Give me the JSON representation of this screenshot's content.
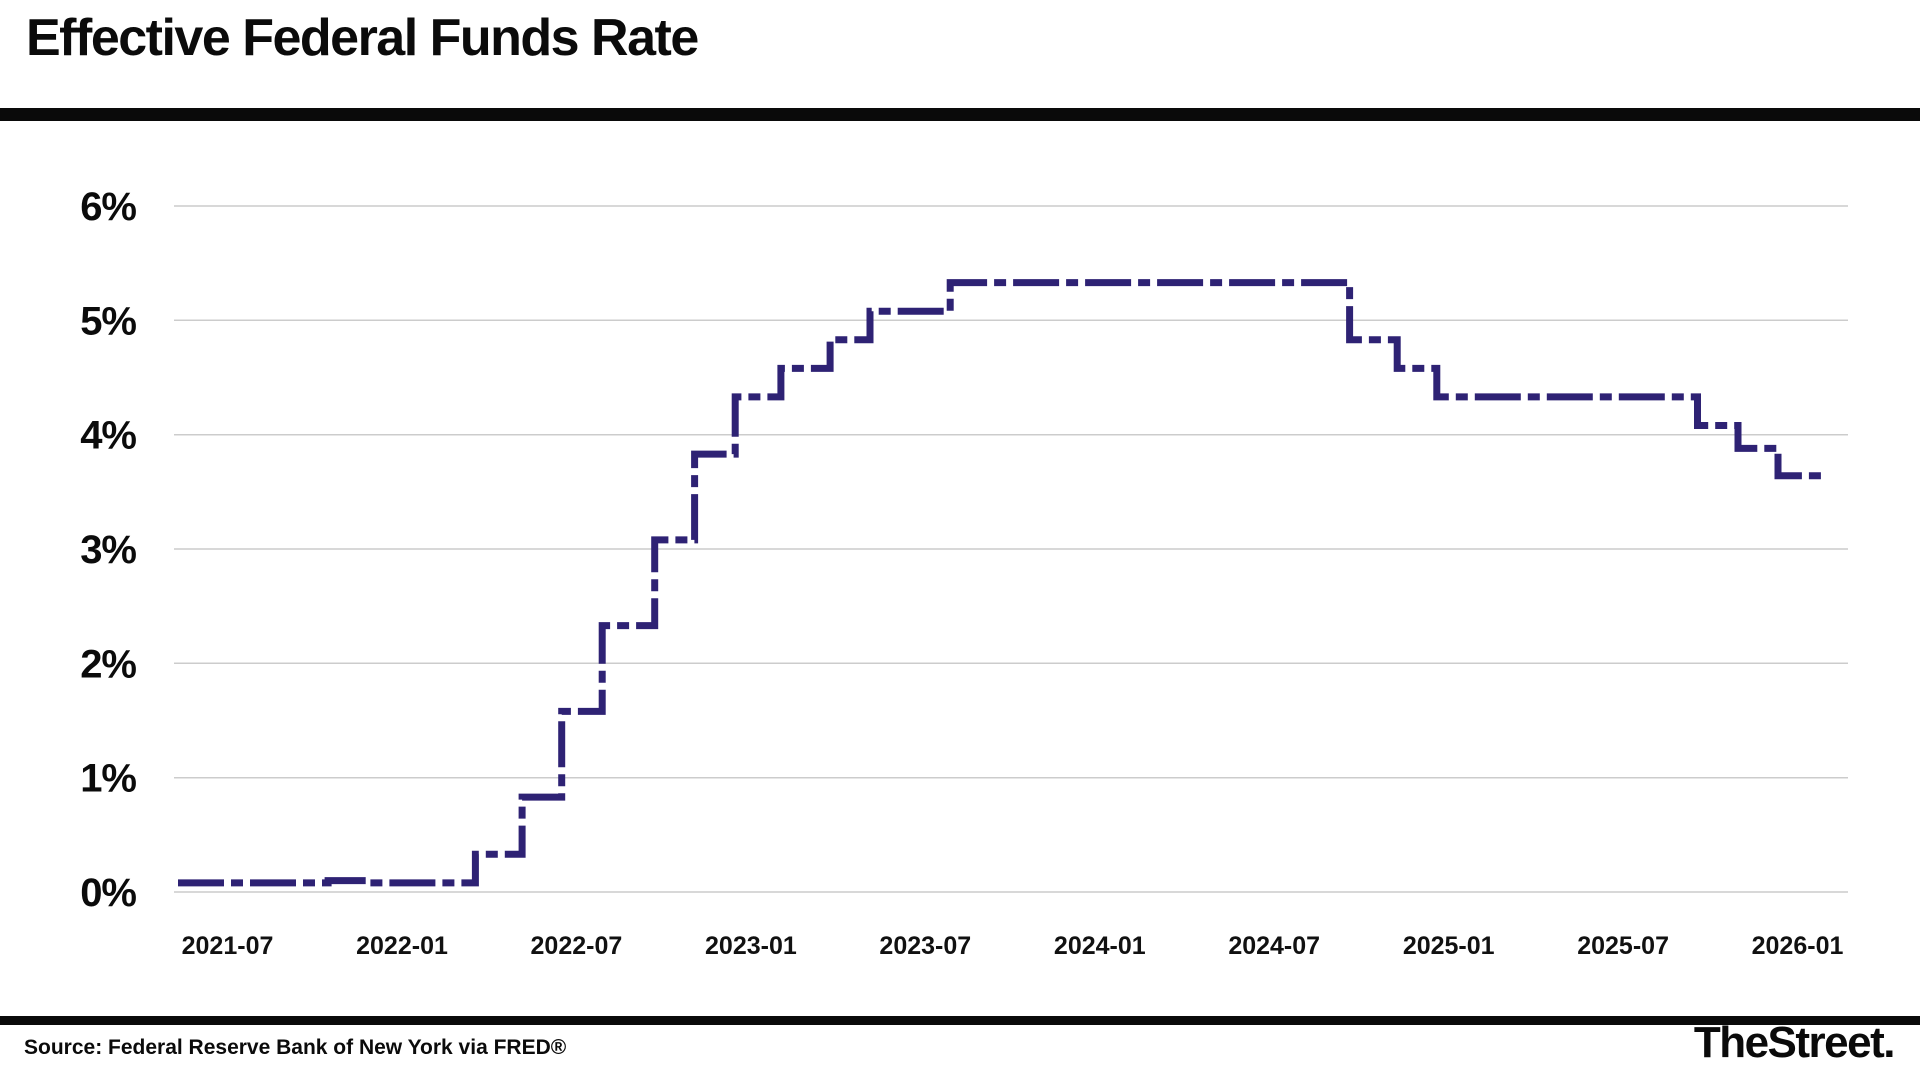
{
  "footer": {
    "source": "Source: Federal Reserve Bank of New York via FRED®",
    "brand": "TheStreet."
  },
  "chart_data": {
    "type": "line",
    "line_style": "step-after",
    "title": "Effective Federal Funds Rate",
    "xlabel": "",
    "ylabel": "",
    "ylim": [
      0,
      6
    ],
    "grid": "horizontal-only",
    "legend": "none",
    "x_domain": [
      "2021-05-10",
      "2026-02-15"
    ],
    "yticks": [
      {
        "value": 0,
        "label": "0%"
      },
      {
        "value": 1,
        "label": "1%"
      },
      {
        "value": 2,
        "label": "2%"
      },
      {
        "value": 3,
        "label": "3%"
      },
      {
        "value": 4,
        "label": "4%"
      },
      {
        "value": 5,
        "label": "5%"
      },
      {
        "value": 6,
        "label": "6%"
      }
    ],
    "xticks": [
      "2021-07",
      "2022-01",
      "2022-07",
      "2023-01",
      "2023-07",
      "2024-01",
      "2024-07",
      "2025-01",
      "2025-07",
      "2026-01"
    ],
    "line_color": "#2e2274",
    "grid_color": "#cccccc",
    "series": [
      {
        "name": "Effective Federal Funds Rate (%)",
        "points": [
          [
            "2021-05-10",
            0.08
          ],
          [
            "2021-10-15",
            0.1
          ],
          [
            "2021-11-25",
            0.08
          ],
          [
            "2022-03-17",
            0.33
          ],
          [
            "2022-05-05",
            0.83
          ],
          [
            "2022-06-16",
            1.58
          ],
          [
            "2022-07-28",
            2.33
          ],
          [
            "2022-09-22",
            3.08
          ],
          [
            "2022-11-03",
            3.83
          ],
          [
            "2022-12-15",
            4.33
          ],
          [
            "2023-02-02",
            4.58
          ],
          [
            "2023-03-23",
            4.83
          ],
          [
            "2023-05-04",
            5.08
          ],
          [
            "2023-07-27",
            5.33
          ],
          [
            "2024-09-19",
            4.83
          ],
          [
            "2024-11-08",
            4.58
          ],
          [
            "2024-12-19",
            4.33
          ],
          [
            "2025-09-18",
            4.08
          ],
          [
            "2025-10-30",
            3.88
          ],
          [
            "2025-12-11",
            3.64
          ]
        ],
        "end_date": "2026-01-31"
      }
    ]
  }
}
